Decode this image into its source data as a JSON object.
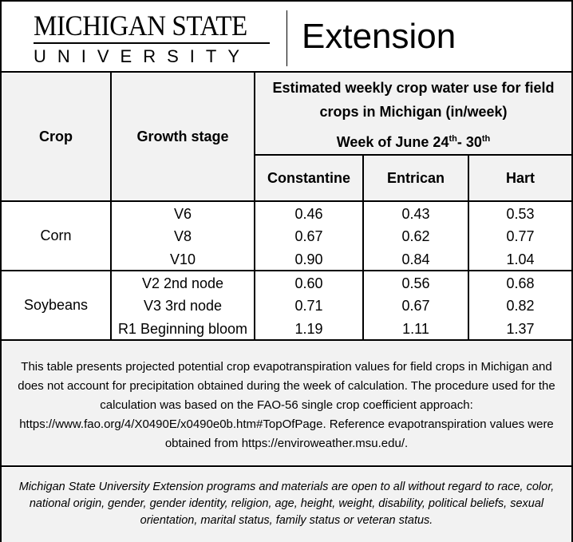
{
  "header": {
    "logo_line1": "MICHIGAN STATE",
    "logo_line2": "UNIVERSITY",
    "extension": "Extension"
  },
  "table": {
    "col_crop": "Crop",
    "col_stage": "Growth stage",
    "title": "Estimated weekly crop water use for field crops in Michigan (in/week)",
    "week_prefix": "Week of June 24",
    "week_sup1": "th",
    "week_mid": "- 30",
    "week_sup2": "th",
    "locations": [
      "Constantine",
      "Entrican",
      "Hart"
    ],
    "groups": [
      {
        "crop": "Corn",
        "rows": [
          {
            "stage": "V6",
            "values": [
              "0.46",
              "0.43",
              "0.53"
            ]
          },
          {
            "stage": "V8",
            "values": [
              "0.67",
              "0.62",
              "0.77"
            ]
          },
          {
            "stage": "V10",
            "values": [
              "0.90",
              "0.84",
              "1.04"
            ]
          }
        ]
      },
      {
        "crop": "Soybeans",
        "rows": [
          {
            "stage": "V2 2nd node",
            "values": [
              "0.60",
              "0.56",
              "0.68"
            ]
          },
          {
            "stage": "V3 3rd node",
            "values": [
              "0.71",
              "0.67",
              "0.82"
            ]
          },
          {
            "stage": "R1 Beginning bloom",
            "values": [
              "1.19",
              "1.11",
              "1.37"
            ]
          }
        ]
      }
    ]
  },
  "note": "This table presents projected potential crop evapotranspiration values for field crops in Michigan and does not account for precipitation obtained during the week of calculation. The procedure used for the calculation was based on the FAO-56 single crop coefficient approach: https://www.fao.org/4/X0490E/x0490e0b.htm#TopOfPage.  Reference evapotranspiration values were obtained from https://enviroweather.msu.edu/.",
  "disclaimer": "Michigan State University Extension programs and materials are open to all without regard to race, color, national origin, gender, gender identity, religion, age, height, weight, disability, political beliefs, sexual orientation, marital status, family status or veteran status."
}
